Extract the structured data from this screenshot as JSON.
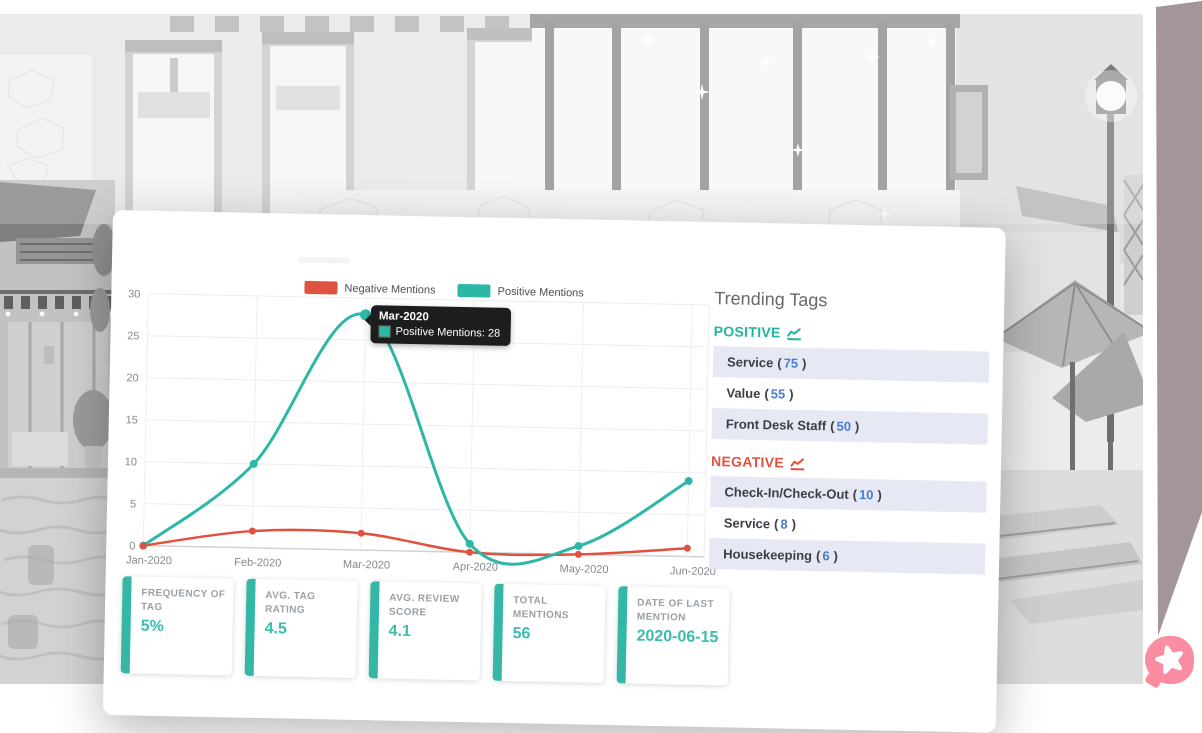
{
  "colors": {
    "positive_teal": "#2db7a7",
    "negative_red": "#e0523f",
    "count_blue": "#4a7bd5",
    "row_alt_lavender": "#e6e8f3",
    "accent_strip_mauve": "#a4949b",
    "chat_pink": "#fa8da1",
    "stat_accent": "#35b7a8"
  },
  "legend": {
    "items": [
      {
        "label": "Negative Mentions",
        "color": "#e0523f"
      },
      {
        "label": "Positive Mentions",
        "color": "#2db7a7"
      }
    ]
  },
  "tooltip": {
    "title": "Mar-2020",
    "label": "Positive Mentions: 28",
    "swatch_color": "#2db7a7"
  },
  "chart_data": {
    "type": "line",
    "x": [
      "Jan-2020",
      "Feb-2020",
      "Mar-2020",
      "Apr-2020",
      "May-2020",
      "Jun-2020"
    ],
    "series": [
      {
        "name": "Negative Mentions",
        "color": "#e0523f",
        "values": [
          0,
          2,
          2,
          0,
          0,
          1
        ]
      },
      {
        "name": "Positive Mentions",
        "color": "#2db7a7",
        "values": [
          0,
          10,
          28,
          1,
          1,
          9
        ]
      }
    ],
    "ylim": [
      0,
      30
    ],
    "yticks": [
      0,
      5,
      10,
      15,
      20,
      25,
      30
    ],
    "grid": true,
    "legend_position": "top",
    "highlight": {
      "series": "Positive Mentions",
      "x": "Mar-2020",
      "value": 28
    }
  },
  "trending": {
    "title": "Trending Tags",
    "paren_open": "(",
    "paren_close": ")",
    "sections": [
      {
        "label": "POSITIVE",
        "color": "#26b3a2",
        "items": [
          {
            "name": "Service",
            "count": "75"
          },
          {
            "name": "Value",
            "count": "55"
          },
          {
            "name": "Front Desk Staff",
            "count": "50"
          }
        ]
      },
      {
        "label": "NEGATIVE",
        "color": "#e0523f",
        "items": [
          {
            "name": "Check-In/Check-Out",
            "count": "10"
          },
          {
            "name": "Service",
            "count": "8"
          },
          {
            "name": "Housekeeping",
            "count": "6"
          }
        ]
      }
    ]
  },
  "stats": [
    {
      "label": "FREQUENCY OF TAG",
      "value": "5%"
    },
    {
      "label": "AVG. TAG RATING",
      "value": "4.5"
    },
    {
      "label": "AVG. REVIEW SCORE",
      "value": "4.1"
    },
    {
      "label": "TOTAL MENTIONS",
      "value": "56"
    },
    {
      "label": "DATE OF LAST MENTION",
      "value": "2020-06-15"
    }
  ]
}
